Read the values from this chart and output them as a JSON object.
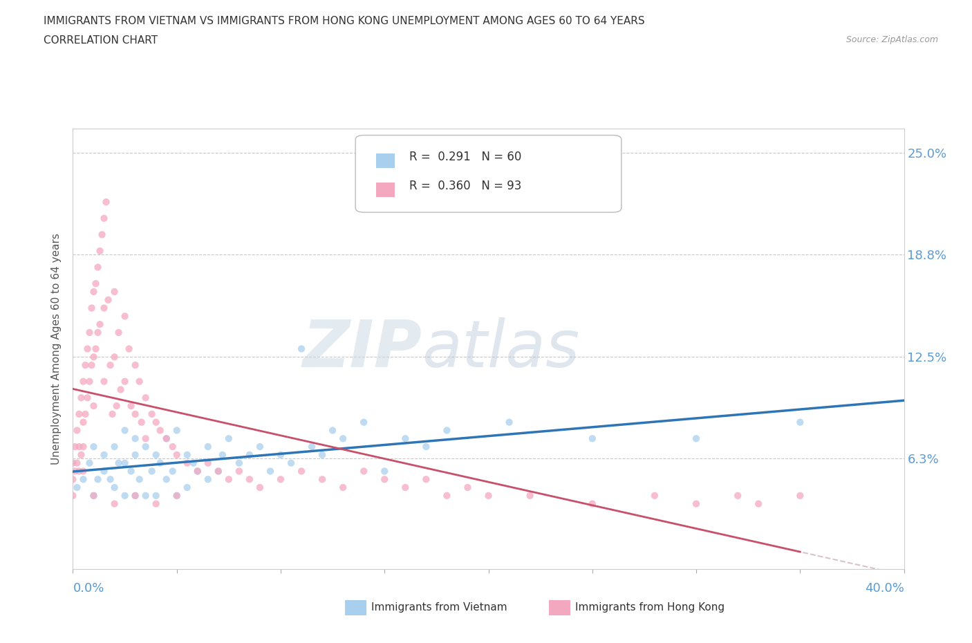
{
  "title_line1": "IMMIGRANTS FROM VIETNAM VS IMMIGRANTS FROM HONG KONG UNEMPLOYMENT AMONG AGES 60 TO 64 YEARS",
  "title_line2": "CORRELATION CHART",
  "source": "Source: ZipAtlas.com",
  "ylabel": "Unemployment Among Ages 60 to 64 years",
  "xlim": [
    0.0,
    0.4
  ],
  "ylim": [
    -0.005,
    0.265
  ],
  "ytick_values": [
    0.063,
    0.125,
    0.188,
    0.25
  ],
  "ytick_labels": [
    "6.3%",
    "12.5%",
    "18.8%",
    "25.0%"
  ],
  "color_vietnam": "#a8d0ee",
  "color_hongkong": "#f4a8c0",
  "color_vietnam_line": "#2e75b6",
  "color_hongkong_line": "#c9506a",
  "color_hongkong_trendext": "#d8a0b0",
  "watermark_zip": "ZIP",
  "watermark_atlas": "atlas",
  "background_color": "#ffffff",
  "grid_color": "#c8c8c8",
  "vietnam_x": [
    0.002,
    0.005,
    0.008,
    0.01,
    0.01,
    0.012,
    0.015,
    0.015,
    0.018,
    0.02,
    0.02,
    0.022,
    0.025,
    0.025,
    0.025,
    0.028,
    0.03,
    0.03,
    0.03,
    0.032,
    0.035,
    0.035,
    0.038,
    0.04,
    0.04,
    0.042,
    0.045,
    0.045,
    0.048,
    0.05,
    0.05,
    0.055,
    0.055,
    0.058,
    0.06,
    0.065,
    0.065,
    0.07,
    0.072,
    0.075,
    0.08,
    0.085,
    0.09,
    0.095,
    0.1,
    0.105,
    0.11,
    0.115,
    0.12,
    0.125,
    0.13,
    0.14,
    0.15,
    0.16,
    0.17,
    0.18,
    0.21,
    0.25,
    0.3,
    0.35
  ],
  "vietnam_y": [
    0.045,
    0.05,
    0.06,
    0.04,
    0.07,
    0.05,
    0.055,
    0.065,
    0.05,
    0.045,
    0.07,
    0.06,
    0.04,
    0.06,
    0.08,
    0.055,
    0.04,
    0.065,
    0.075,
    0.05,
    0.04,
    0.07,
    0.055,
    0.04,
    0.065,
    0.06,
    0.05,
    0.075,
    0.055,
    0.04,
    0.08,
    0.045,
    0.065,
    0.06,
    0.055,
    0.05,
    0.07,
    0.055,
    0.065,
    0.075,
    0.06,
    0.065,
    0.07,
    0.055,
    0.065,
    0.06,
    0.13,
    0.07,
    0.065,
    0.08,
    0.075,
    0.085,
    0.055,
    0.075,
    0.07,
    0.08,
    0.085,
    0.075,
    0.075,
    0.085
  ],
  "hongkong_x": [
    0.0,
    0.0,
    0.0,
    0.001,
    0.001,
    0.002,
    0.002,
    0.003,
    0.003,
    0.003,
    0.004,
    0.004,
    0.005,
    0.005,
    0.005,
    0.005,
    0.006,
    0.006,
    0.007,
    0.007,
    0.008,
    0.008,
    0.009,
    0.009,
    0.01,
    0.01,
    0.01,
    0.011,
    0.011,
    0.012,
    0.012,
    0.013,
    0.013,
    0.014,
    0.015,
    0.015,
    0.015,
    0.016,
    0.017,
    0.018,
    0.019,
    0.02,
    0.02,
    0.021,
    0.022,
    0.023,
    0.025,
    0.025,
    0.027,
    0.028,
    0.03,
    0.03,
    0.032,
    0.033,
    0.035,
    0.035,
    0.038,
    0.04,
    0.042,
    0.045,
    0.048,
    0.05,
    0.055,
    0.06,
    0.065,
    0.07,
    0.075,
    0.08,
    0.085,
    0.09,
    0.1,
    0.11,
    0.12,
    0.13,
    0.14,
    0.15,
    0.16,
    0.17,
    0.18,
    0.19,
    0.2,
    0.22,
    0.25,
    0.28,
    0.3,
    0.32,
    0.33,
    0.35,
    0.01,
    0.02,
    0.03,
    0.04,
    0.05
  ],
  "hongkong_y": [
    0.06,
    0.05,
    0.04,
    0.07,
    0.055,
    0.08,
    0.06,
    0.09,
    0.07,
    0.055,
    0.1,
    0.065,
    0.11,
    0.085,
    0.07,
    0.055,
    0.12,
    0.09,
    0.13,
    0.1,
    0.14,
    0.11,
    0.155,
    0.12,
    0.165,
    0.125,
    0.095,
    0.17,
    0.13,
    0.18,
    0.14,
    0.19,
    0.145,
    0.2,
    0.21,
    0.155,
    0.11,
    0.22,
    0.16,
    0.12,
    0.09,
    0.165,
    0.125,
    0.095,
    0.14,
    0.105,
    0.15,
    0.11,
    0.13,
    0.095,
    0.12,
    0.09,
    0.11,
    0.085,
    0.1,
    0.075,
    0.09,
    0.085,
    0.08,
    0.075,
    0.07,
    0.065,
    0.06,
    0.055,
    0.06,
    0.055,
    0.05,
    0.055,
    0.05,
    0.045,
    0.05,
    0.055,
    0.05,
    0.045,
    0.055,
    0.05,
    0.045,
    0.05,
    0.04,
    0.045,
    0.04,
    0.04,
    0.035,
    0.04,
    0.035,
    0.04,
    0.035,
    0.04,
    0.04,
    0.035,
    0.04,
    0.035,
    0.04
  ]
}
